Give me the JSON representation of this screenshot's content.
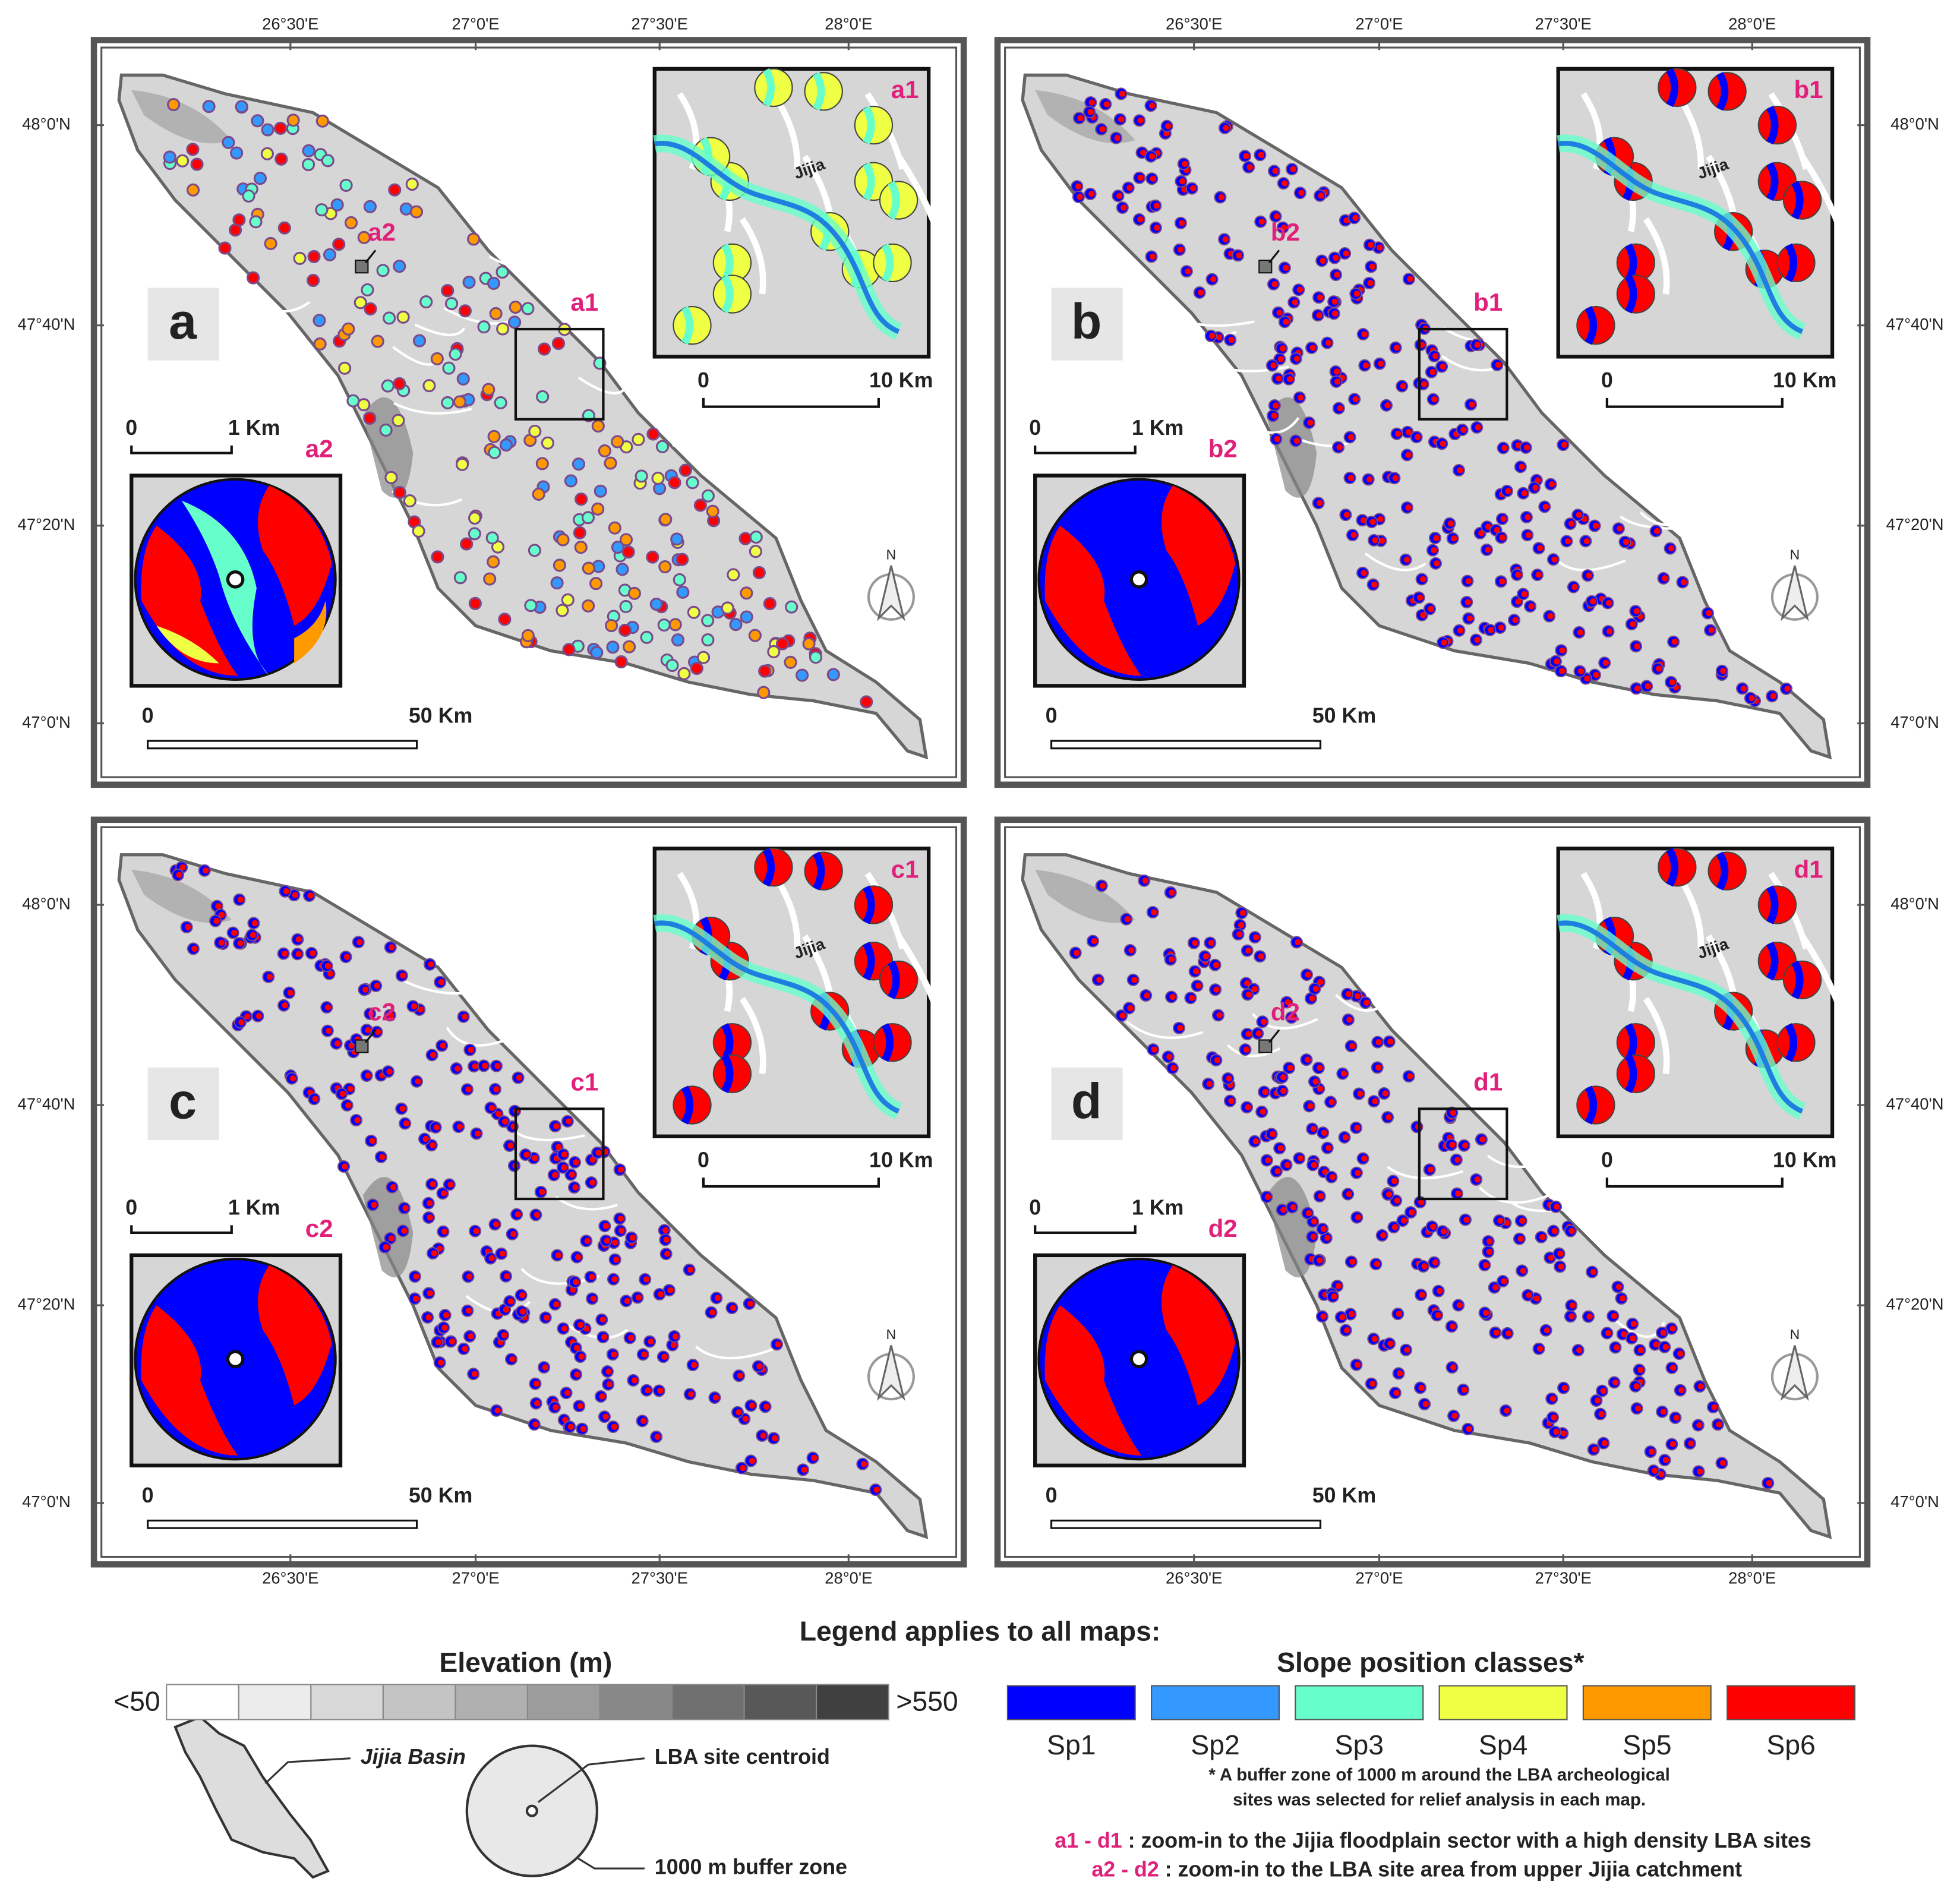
{
  "panels": [
    {
      "letter": "a",
      "zoom1": "a1",
      "zoom2": "a2"
    },
    {
      "letter": "b",
      "zoom1": "b1",
      "zoom2": "b2"
    },
    {
      "letter": "c",
      "zoom1": "c1",
      "zoom2": "c2"
    },
    {
      "letter": "d",
      "zoom1": "d1",
      "zoom2": "d2"
    }
  ],
  "longitude_labels": [
    "26°30'E",
    "27°0'E",
    "27°30'E",
    "28°0'E"
  ],
  "latitude_labels": [
    "48°0'N",
    "47°40'N",
    "47°20'N",
    "47°0'N"
  ],
  "north_label": "N",
  "river_label": "Jijia",
  "scale_labels": {
    "zero": "0",
    "inset1": "10 Km",
    "inset2": "1 Km",
    "main": "50 Km"
  },
  "legend": {
    "title": "Legend applies to all maps:",
    "elevation": {
      "title": "Elevation (m)",
      "min_label": "<50",
      "max_label": ">550",
      "colors": [
        "#ffffff",
        "#ececec",
        "#d8d8d8",
        "#c4c4c4",
        "#b0b0b0",
        "#9c9c9c",
        "#888888",
        "#707070",
        "#585858",
        "#404040"
      ]
    },
    "slope": {
      "title": "Slope position classes*",
      "classes": [
        {
          "name": "Sp1",
          "color": "#0000ff"
        },
        {
          "name": "Sp2",
          "color": "#3399ff"
        },
        {
          "name": "Sp3",
          "color": "#66ffcc"
        },
        {
          "name": "Sp4",
          "color": "#eeff44"
        },
        {
          "name": "Sp5",
          "color": "#ff9900"
        },
        {
          "name": "Sp6",
          "color": "#ff0000"
        }
      ],
      "note": [
        "* A buffer zone of 1000 m  around the LBA archeological",
        "sites was selected for relief analysis in each map."
      ]
    },
    "basin_label": "Jijia Basin",
    "centroid_label": "LBA site centroid",
    "buffer_label": "1000 m buffer zone",
    "zoom_notes": [
      {
        "key": "a1 - d1",
        "text": " : zoom-in to the Jijia floodplain sector with a high density LBA sites"
      },
      {
        "key": "a2 - d2",
        "text": " : zoom-in to the LBA site area from upper Jijia catchment"
      }
    ]
  }
}
